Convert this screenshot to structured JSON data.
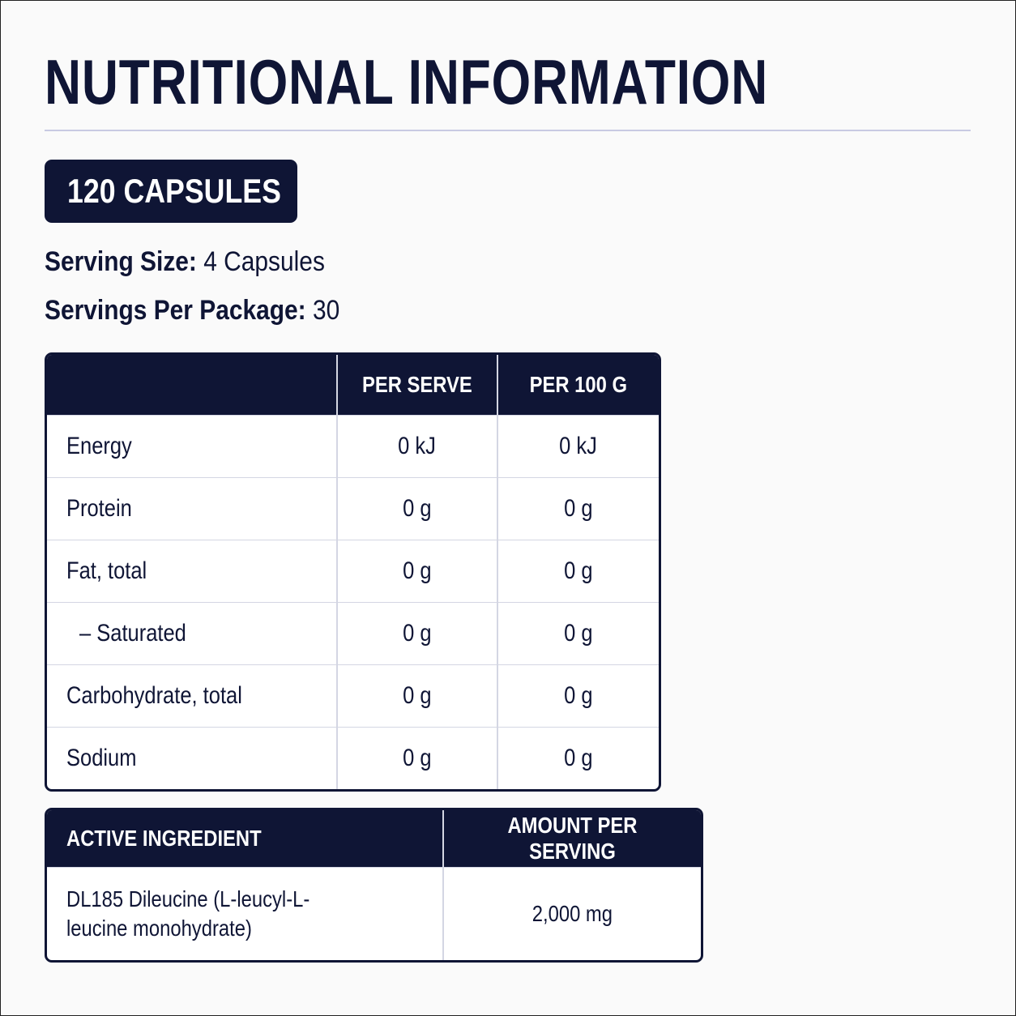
{
  "header": {
    "title": "NUTRITIONAL INFORMATION"
  },
  "badge": {
    "text": "120 CAPSULES"
  },
  "serving": [
    {
      "label": "Serving Size:",
      "value": "4 Capsules"
    },
    {
      "label": "Servings Per Package:",
      "value": "30"
    }
  ],
  "nutrition_table": {
    "columns": [
      "PER SERVE",
      "PER 100 G"
    ],
    "rows": [
      [
        "Energy",
        "0 kJ",
        "0 kJ"
      ],
      [
        "Protein",
        "0 g",
        "0 g"
      ],
      [
        "Fat, total",
        "0 g",
        "0 g"
      ],
      [
        "– Saturated",
        "0 g",
        "0 g"
      ],
      [
        "Carbohydrate, total",
        "0 g",
        "0 g"
      ],
      [
        "Sodium",
        "0 g",
        "0 g"
      ]
    ]
  },
  "ingredient_table": {
    "columns": [
      "ACTIVE INGREDIENT",
      "AMOUNT PER SERVING"
    ],
    "rows": [
      [
        "DL185 Dileucine (L-leucyl-L-leucine monohydrate)",
        "2,000 mg"
      ]
    ]
  }
}
